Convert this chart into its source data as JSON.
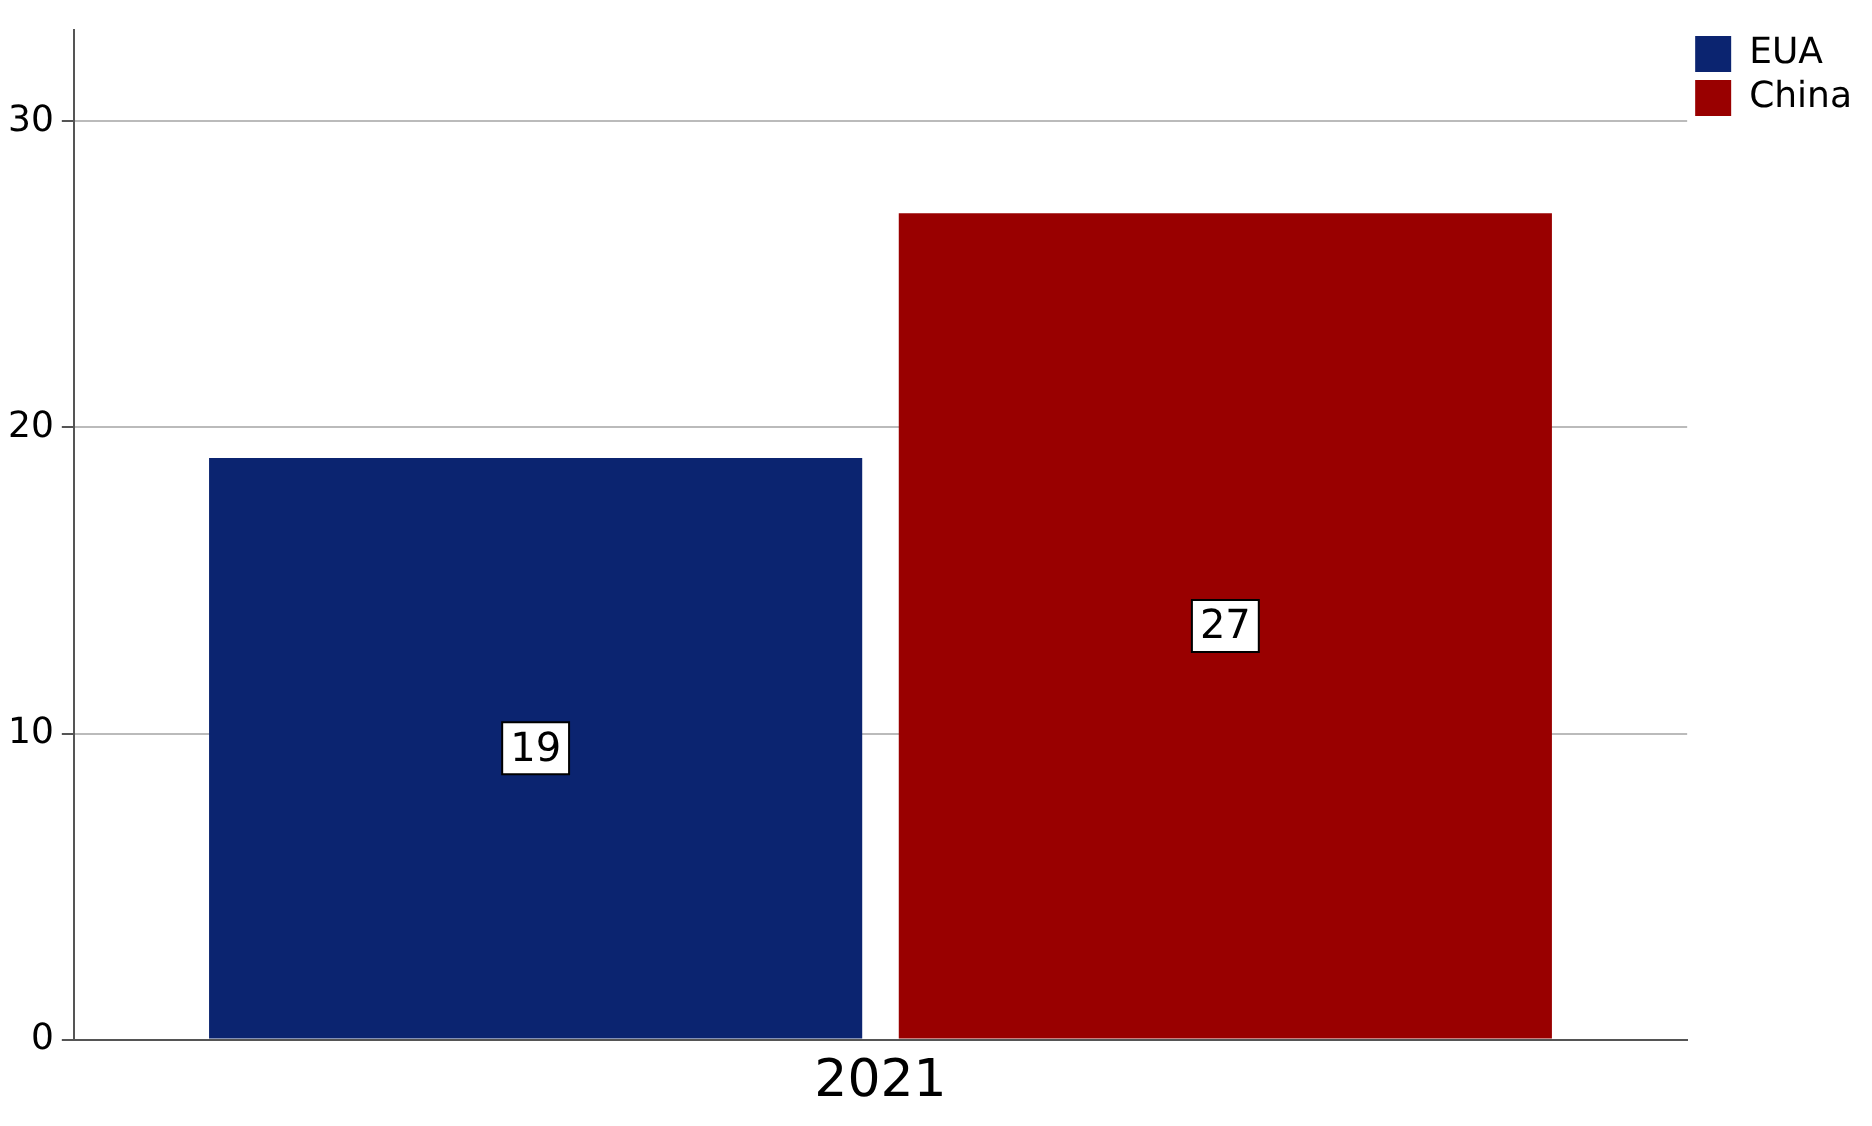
{
  "chart_data": {
    "type": "bar",
    "categories": [
      "2021"
    ],
    "series": [
      {
        "name": "EUA",
        "color": "#0b2470",
        "values": [
          19
        ]
      },
      {
        "name": "China",
        "color": "#990000",
        "values": [
          27
        ]
      }
    ],
    "ylim": [
      0,
      33
    ],
    "yticks": [
      0,
      10,
      20,
      30
    ],
    "grid": "y",
    "legend": "top right",
    "data_labels": true
  }
}
